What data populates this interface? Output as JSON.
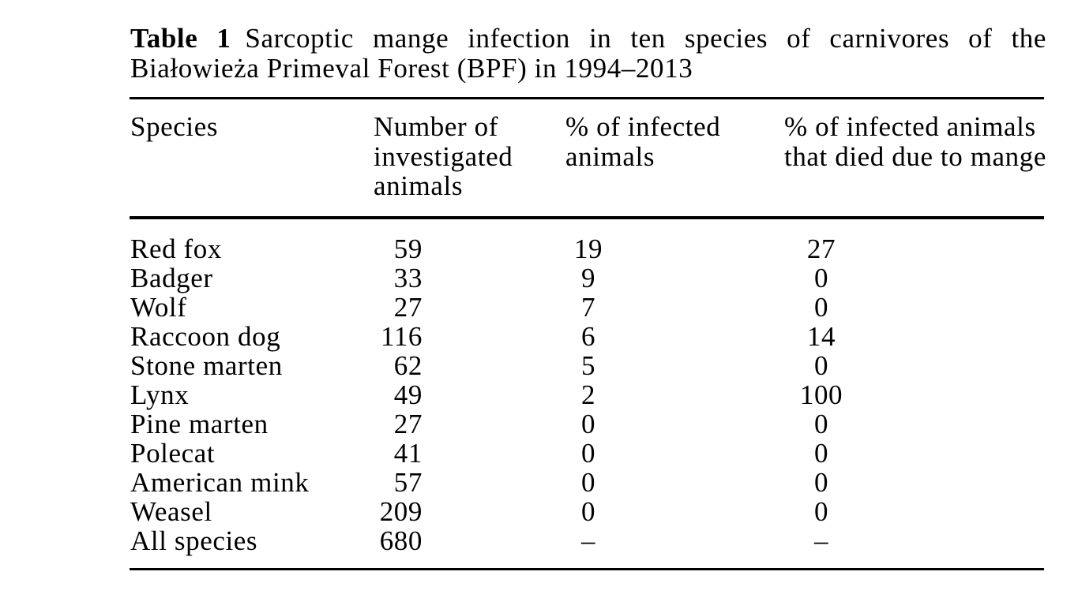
{
  "table": {
    "label": "Table 1",
    "caption": "Sarcoptic mange infection in ten species of carnivores of the Białowieża Primeval Forest (BPF) in 1994–2013",
    "columns": [
      "Species",
      "Number of investigated animals",
      "% of infected animals",
      "% of infected animals that died due to mange"
    ],
    "rows": [
      {
        "species": "Red fox",
        "number": "59",
        "infected": "19",
        "died": "27"
      },
      {
        "species": "Badger",
        "number": "33",
        "infected": "9",
        "died": "0"
      },
      {
        "species": "Wolf",
        "number": "27",
        "infected": "7",
        "died": "0"
      },
      {
        "species": "Raccoon dog",
        "number": "116",
        "infected": "6",
        "died": "14"
      },
      {
        "species": "Stone marten",
        "number": "62",
        "infected": "5",
        "died": "0"
      },
      {
        "species": "Lynx",
        "number": "49",
        "infected": "2",
        "died": "100"
      },
      {
        "species": "Pine marten",
        "number": "27",
        "infected": "0",
        "died": "0"
      },
      {
        "species": "Polecat",
        "number": "41",
        "infected": "0",
        "died": "0"
      },
      {
        "species": "American mink",
        "number": "57",
        "infected": "0",
        "died": "0"
      },
      {
        "species": "Weasel",
        "number": "209",
        "infected": "0",
        "died": "0"
      },
      {
        "species": "All species",
        "number": "680",
        "infected": "–",
        "died": "–"
      }
    ]
  }
}
